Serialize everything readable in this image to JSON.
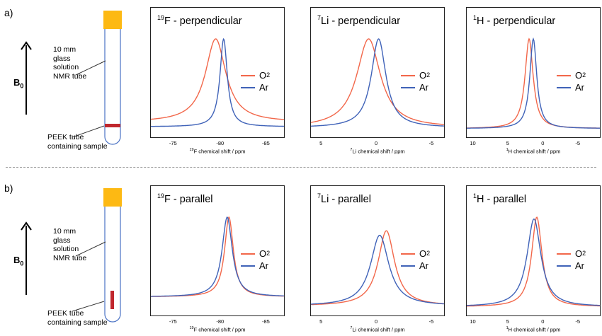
{
  "rows": [
    {
      "label": "a)",
      "b0": "B",
      "b0_sub": "0",
      "tube_label": [
        "10 mm",
        "glass",
        "solution",
        "NMR tube"
      ],
      "sample_label": [
        "PEEK tube",
        "containing sample"
      ],
      "sample_orientation": "horizontal",
      "panels": [
        {
          "title_sup": "19",
          "title": "F - perpendicular",
          "ticks": [
            "-75",
            "-80",
            "-85"
          ],
          "xlabel_sup": "19",
          "xlabel": "F chemical shift / ppm"
        },
        {
          "title_sup": "7",
          "title": "Li - perpendicular",
          "ticks": [
            "5",
            "0",
            "-5"
          ],
          "xlabel_sup": "7",
          "xlabel": "Li chemical shift / ppm"
        },
        {
          "title_sup": "1",
          "title": "H - perpendicular",
          "ticks": [
            "10",
            "5",
            "0",
            "-5"
          ],
          "xlabel_sup": "1",
          "xlabel": "H chemical shift / ppm"
        }
      ]
    },
    {
      "label": "b)",
      "b0": "B",
      "b0_sub": "0",
      "tube_label": [
        "10 mm",
        "glass",
        "solution",
        "NMR tube"
      ],
      "sample_label": [
        "PEEK tube",
        "containing sample"
      ],
      "sample_orientation": "vertical",
      "panels": [
        {
          "title_sup": "19",
          "title": "F - parallel",
          "ticks": [
            "-75",
            "-80",
            "-85"
          ],
          "xlabel_sup": "19",
          "xlabel": "F chemical shift / ppm"
        },
        {
          "title_sup": "7",
          "title": "Li - parallel",
          "ticks": [
            "5",
            "0",
            "-5"
          ],
          "xlabel_sup": "7",
          "xlabel": "Li chemical shift / ppm"
        },
        {
          "title_sup": "1",
          "title": "H - parallel",
          "ticks": [
            "10",
            "5",
            "0",
            "-5"
          ],
          "xlabel_sup": "1",
          "xlabel": "H chemical shift / ppm"
        }
      ]
    }
  ],
  "legend": {
    "o2_main": "O",
    "o2_sub": "2",
    "ar": "Ar"
  },
  "colors": {
    "o2": "#f2674a",
    "ar": "#3f62b8",
    "cap": "#fdb913",
    "sample": "#c0272d",
    "tube": "#4a72c4"
  },
  "chart_data": [
    {
      "type": "line",
      "title": "19F - perpendicular",
      "xlabel": "19F chemical shift / ppm",
      "xlim": [
        -71,
        -86
      ],
      "x_reversed": true,
      "series": [
        {
          "name": "O2",
          "peak_x": -78.3,
          "peak_y": 1.0,
          "width": 1.4,
          "baseline": 0.08
        },
        {
          "name": "Ar",
          "peak_x": -79.2,
          "peak_y": 1.0,
          "width": 0.5,
          "baseline": 0.03
        }
      ]
    },
    {
      "type": "line",
      "title": "7Li - perpendicular",
      "xlabel": "7Li chemical shift / ppm",
      "xlim": [
        5.5,
        -6.5
      ],
      "x_reversed": true,
      "series": [
        {
          "name": "O2",
          "peak_x": 0.3,
          "peak_y": 1.0,
          "width": 1.3,
          "baseline": 0.02
        },
        {
          "name": "Ar",
          "peak_x": -0.6,
          "peak_y": 1.0,
          "width": 0.8,
          "baseline": 0.02
        }
      ]
    },
    {
      "type": "line",
      "title": "1H - perpendicular",
      "xlabel": "1H chemical shift / ppm",
      "xlim": [
        13,
        -6
      ],
      "x_reversed": true,
      "series": [
        {
          "name": "O2",
          "peak_x": 4.1,
          "peak_y": 1.0,
          "width": 0.7,
          "baseline": 0.01
        },
        {
          "name": "Ar",
          "peak_x": 3.5,
          "peak_y": 1.0,
          "width": 0.6,
          "baseline": 0.01
        }
      ]
    },
    {
      "type": "line",
      "title": "19F - parallel",
      "xlabel": "19F chemical shift / ppm",
      "xlim": [
        -71,
        -86
      ],
      "x_reversed": true,
      "series": [
        {
          "name": "O2",
          "peak_x": -79.8,
          "peak_y": 1.0,
          "width": 0.6,
          "baseline": 0.12
        },
        {
          "name": "Ar",
          "peak_x": -79.6,
          "peak_y": 1.0,
          "width": 0.7,
          "baseline": 0.12
        }
      ]
    },
    {
      "type": "line",
      "title": "7Li - parallel",
      "xlabel": "7Li chemical shift / ppm",
      "xlim": [
        5.5,
        -6.5
      ],
      "x_reversed": true,
      "series": [
        {
          "name": "O2",
          "peak_x": -1.3,
          "peak_y": 0.85,
          "width": 0.9,
          "baseline": 0.02
        },
        {
          "name": "Ar",
          "peak_x": -0.7,
          "peak_y": 0.8,
          "width": 1.0,
          "baseline": 0.02
        }
      ]
    },
    {
      "type": "line",
      "title": "1H - parallel",
      "xlabel": "1H chemical shift / ppm",
      "xlim": [
        13,
        -6
      ],
      "x_reversed": true,
      "series": [
        {
          "name": "O2",
          "peak_x": 3.0,
          "peak_y": 1.0,
          "width": 0.9,
          "baseline": 0.01
        },
        {
          "name": "Ar",
          "peak_x": 3.4,
          "peak_y": 0.98,
          "width": 1.2,
          "baseline": 0.01
        }
      ]
    }
  ]
}
